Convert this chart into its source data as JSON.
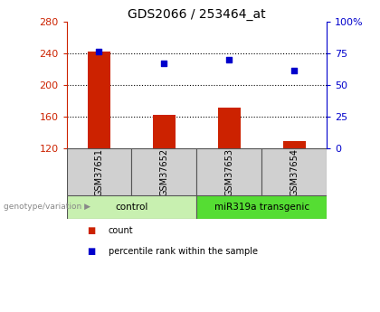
{
  "title": "GDS2066 / 253464_at",
  "categories": [
    "GSM37651",
    "GSM37652",
    "GSM37653",
    "GSM37654"
  ],
  "bar_values": [
    242,
    163,
    172,
    130
  ],
  "bar_color": "#cc2200",
  "dot_values": [
    242,
    228,
    232,
    218
  ],
  "dot_color": "#0000cc",
  "left_ylim": [
    120,
    280
  ],
  "left_yticks": [
    120,
    160,
    200,
    240,
    280
  ],
  "right_ylim": [
    0,
    100
  ],
  "right_yticks": [
    0,
    25,
    50,
    75,
    100
  ],
  "right_yticklabels": [
    "0",
    "25",
    "50",
    "75",
    "100%"
  ],
  "groups": [
    {
      "label": "control",
      "indices": [
        0,
        1
      ],
      "color": "#c8f0b0"
    },
    {
      "label": "miR319a transgenic",
      "indices": [
        2,
        3
      ],
      "color": "#55dd33"
    }
  ],
  "genotype_label": "genotype/variation",
  "legend_count_label": "count",
  "legend_pct_label": "percentile rank within the sample",
  "grid_lines": [
    160,
    200,
    240
  ],
  "left_axis_color": "#cc2200",
  "right_axis_color": "#0000cc",
  "title_fontsize": 10,
  "tick_fontsize": 8,
  "bar_baseline": 120,
  "bar_width": 0.35,
  "cell_color": "#d0d0d0",
  "cell_edge_color": "#555555"
}
